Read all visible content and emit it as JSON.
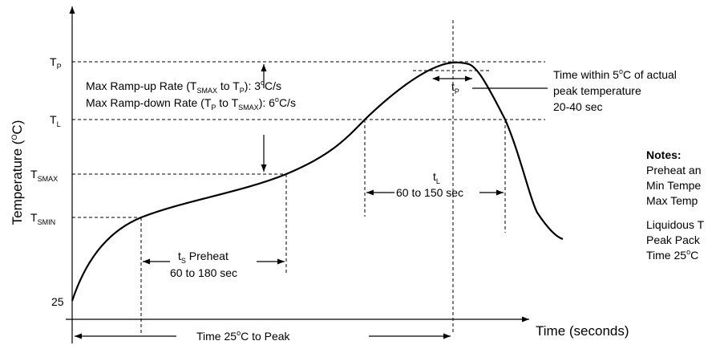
{
  "axes": {
    "y_label": "Temperature",
    "y_unit_open": " (",
    "y_unit_sup": "O",
    "y_unit_close": "C)",
    "x_label": "Time (seconds)"
  },
  "y_ticks": {
    "tp": {
      "main": "T",
      "sub": "P"
    },
    "tl": {
      "main": "T",
      "sub": "L"
    },
    "tsmax": {
      "main": "T",
      "sub": "SMAX"
    },
    "tsmin": {
      "main": "T",
      "sub": "SMIN"
    },
    "t25": "25"
  },
  "ramp": {
    "line1": {
      "a": "Max Ramp-up Rate (T",
      "a_sub": "SMAX",
      "b": " to T",
      "b_sub": "P",
      "c": "): 3",
      "c_sup": "o",
      "d": "C/s"
    },
    "line2": {
      "a": "Max Ramp-down Rate (T",
      "a_sub": "P",
      "b": " to T",
      "b_sub": "SMAX",
      "c": "): 6",
      "c_sup": "o",
      "d": "C/s"
    }
  },
  "preheat": {
    "t": "t",
    "t_sub": "S",
    "label": " Preheat",
    "range": "60 to 180 sec"
  },
  "liquidous": {
    "t": "t",
    "t_sub": "L",
    "range": "60 to 150 sec"
  },
  "peak": {
    "t": "t",
    "t_sub": "P"
  },
  "time_within": {
    "line1a": "Time within 5",
    "line1_sup": "o",
    "line1b": "C of actual",
    "line2": "peak temperature",
    "line3": "20-40 sec"
  },
  "time_to_peak": {
    "a": "Time 25",
    "sup": "o",
    "b": "C to Peak"
  },
  "notes": {
    "title": "Notes:",
    "line1": "Preheat an",
    "line2": "Min Tempe",
    "line3": "Max Temp",
    "line4": "Liquidous T",
    "line5": "Peak Pack",
    "line6a": "Time 25",
    "line6_sup": "o",
    "line6b": "C"
  }
}
